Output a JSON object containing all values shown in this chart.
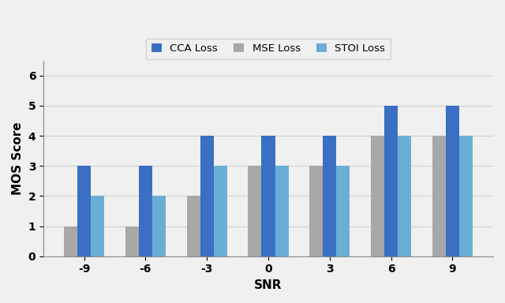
{
  "snr_labels": [
    "-9",
    "-6",
    "-3",
    "0",
    "3",
    "6",
    "9"
  ],
  "cca_loss": [
    3,
    3,
    4,
    4,
    4,
    5,
    5
  ],
  "mse_loss": [
    1,
    1,
    2,
    3,
    3,
    4,
    4
  ],
  "stoi_loss": [
    2,
    2,
    3,
    3,
    3,
    4,
    4
  ],
  "cca_color": "#3A6FC4",
  "mse_color": "#A8A8A8",
  "stoi_color": "#6AAED6",
  "legend_labels": [
    "CCA Loss",
    "MSE Loss",
    "STOI Loss"
  ],
  "xlabel": "SNR",
  "ylabel": "MOS Score",
  "ylim": [
    0,
    6.5
  ],
  "yticks": [
    0,
    1,
    2,
    3,
    4,
    5,
    6
  ],
  "bar_width": 0.22,
  "figsize": [
    6.4,
    3.84
  ],
  "dpi": 100,
  "grid_color": "#d0d0d0",
  "background_color": "#f0f0f0",
  "plot_bg_color": "#f0f0f0",
  "legend_fontsize": 9.5,
  "axis_label_fontsize": 11,
  "tick_fontsize": 10
}
